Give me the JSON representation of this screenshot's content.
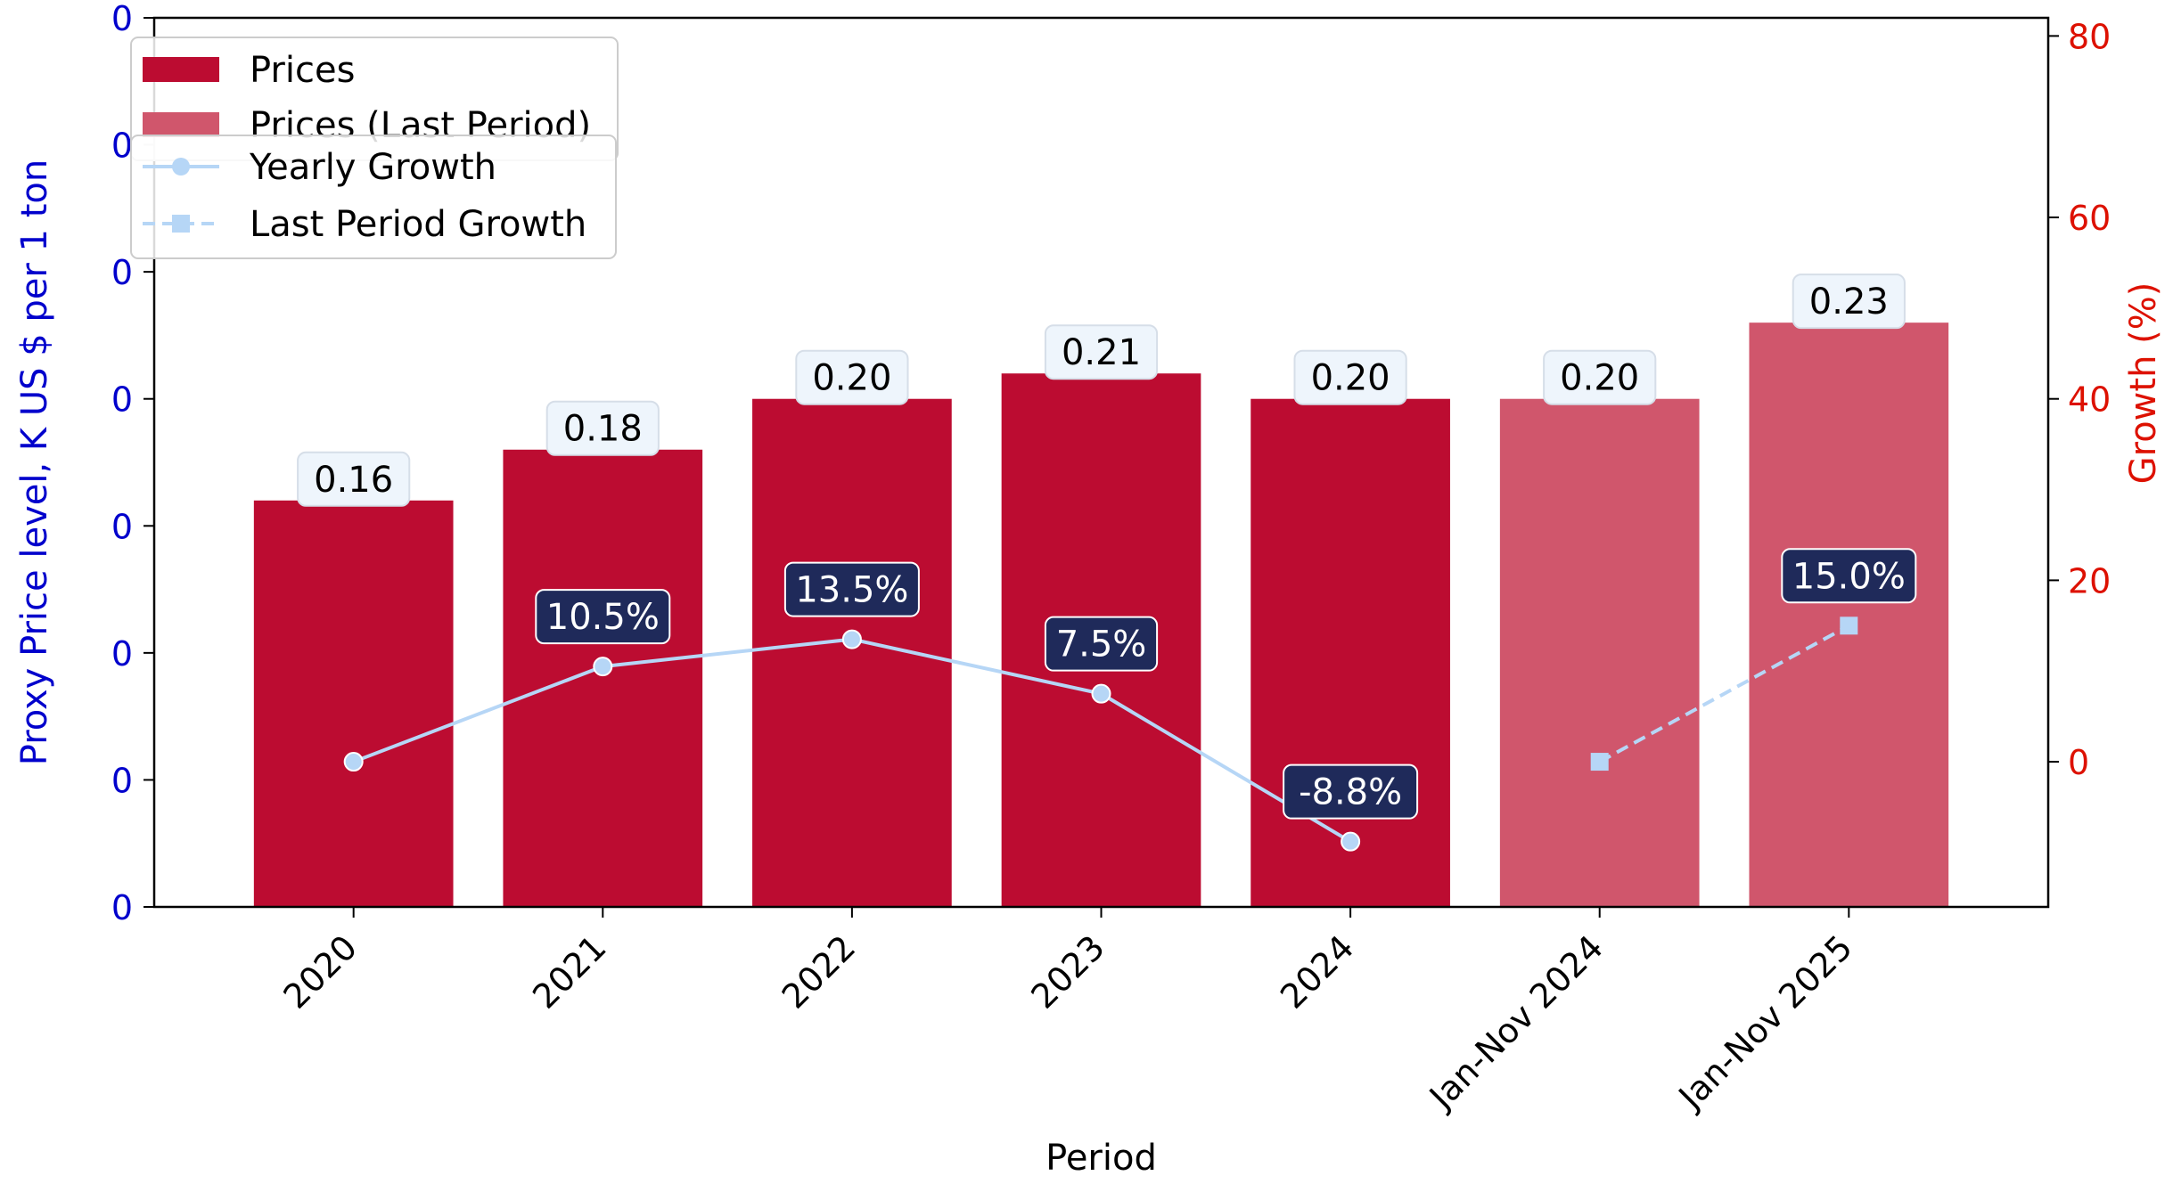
{
  "chart_data": {
    "type": "bar",
    "categories": [
      "2020",
      "2021",
      "2022",
      "2023",
      "2024",
      "Jan-Nov 2024",
      "Jan-Nov 2025"
    ],
    "xlabel": "Period",
    "ylabel": "Proxy Price level, K US $ per 1 ton",
    "y2label": "Growth (%)",
    "ylim": [
      0,
      0.35
    ],
    "y2lim": [
      -16,
      82
    ],
    "y_tick_labels": [
      "0",
      "0",
      "0",
      "0",
      "0",
      "0",
      "0",
      "0"
    ],
    "y_tick_values": [
      0,
      0.05,
      0.1,
      0.15,
      0.2,
      0.25,
      0.3,
      0.35
    ],
    "y2_ticks": [
      0,
      20,
      40,
      60,
      80
    ],
    "series": [
      {
        "name": "Prices",
        "kind": "bar",
        "values": [
          0.16,
          0.18,
          0.2,
          0.21,
          0.2,
          null,
          null
        ],
        "labels": [
          "0.16",
          "0.18",
          "0.20",
          "0.21",
          "0.20",
          "",
          ""
        ],
        "color": "#bc0c31"
      },
      {
        "name": "Prices (Last Period)",
        "kind": "bar",
        "values": [
          null,
          null,
          null,
          null,
          null,
          0.2,
          0.23
        ],
        "labels": [
          "",
          "",
          "",
          "",
          "",
          "0.20",
          "0.23"
        ],
        "color": "#d0566c"
      },
      {
        "name": "Yearly Growth",
        "kind": "line",
        "axis": "right",
        "marker": "circle",
        "dash": "solid",
        "values": [
          0,
          10.5,
          13.5,
          7.5,
          -8.8,
          null,
          null
        ],
        "labels": [
          "",
          "10.5%",
          "13.5%",
          "7.5%",
          "-8.8%",
          "",
          ""
        ],
        "color": "#b6d6f6"
      },
      {
        "name": "Last Period Growth",
        "kind": "line",
        "axis": "right",
        "marker": "square",
        "dash": "dashed",
        "values": [
          null,
          null,
          null,
          null,
          null,
          0,
          15.0
        ],
        "labels": [
          "",
          "",
          "",
          "",
          "",
          "",
          "15.0%"
        ],
        "color": "#b6d6f6"
      }
    ],
    "legend": {
      "placement": "top-left",
      "entries": [
        "Prices",
        "Prices (Last Period)",
        "Yearly Growth",
        "Last Period Growth"
      ]
    },
    "colors": {
      "left_axis": "#0000cc",
      "right_axis": "#dd1100",
      "value_label_bg": "#eef5fc",
      "growth_label_bg": "#1f2a5a"
    },
    "grid": false
  }
}
